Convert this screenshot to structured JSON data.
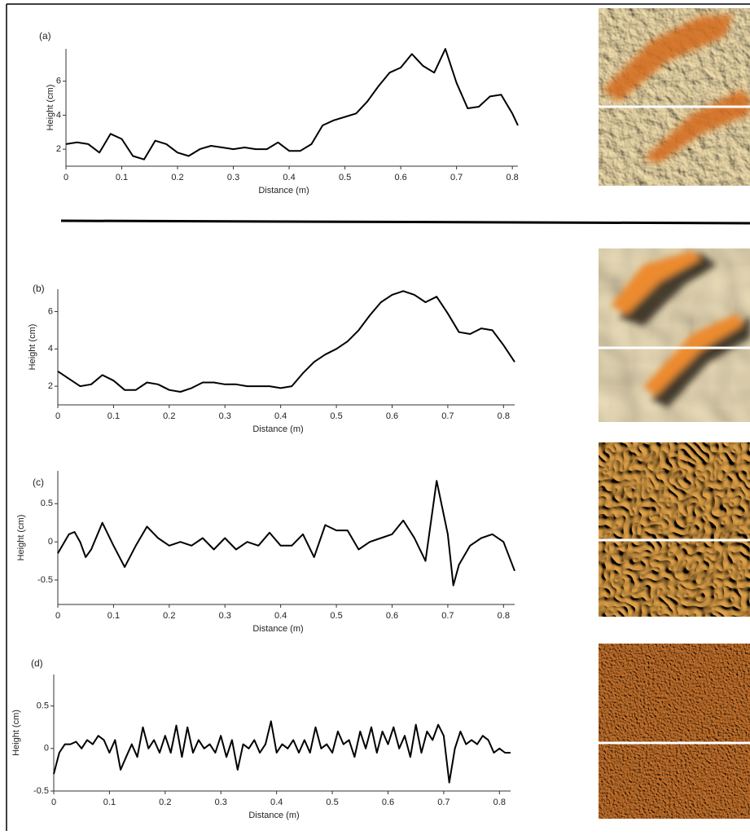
{
  "chart_data": [
    {
      "type": "line",
      "panel_label": "(a)",
      "x_label": "Distance (m)",
      "y_label": "Height (cm)",
      "color": "#000000",
      "x": [
        0,
        0.02,
        0.04,
        0.06,
        0.08,
        0.1,
        0.12,
        0.14,
        0.16,
        0.18,
        0.2,
        0.22,
        0.24,
        0.26,
        0.28,
        0.3,
        0.32,
        0.34,
        0.36,
        0.38,
        0.4,
        0.42,
        0.44,
        0.46,
        0.48,
        0.5,
        0.52,
        0.54,
        0.56,
        0.58,
        0.6,
        0.62,
        0.64,
        0.66,
        0.68,
        0.7,
        0.72,
        0.74,
        0.76,
        0.78,
        0.8,
        0.81
      ],
      "values": [
        2.3,
        2.4,
        2.3,
        1.8,
        2.9,
        2.6,
        1.6,
        1.4,
        2.5,
        2.3,
        1.8,
        1.6,
        2.0,
        2.2,
        2.1,
        2.0,
        2.1,
        2.0,
        2.0,
        2.4,
        1.9,
        1.9,
        2.3,
        3.4,
        3.7,
        3.9,
        4.1,
        4.8,
        5.7,
        6.5,
        6.8,
        7.6,
        6.9,
        6.5,
        7.9,
        5.9,
        4.4,
        4.5,
        5.1,
        5.2,
        4.1,
        3.4
      ],
      "xlim": [
        0,
        0.81
      ],
      "xticks": [
        0,
        0.1,
        0.2,
        0.3,
        0.4,
        0.5,
        0.6,
        0.7,
        0.8
      ],
      "ylim": [
        1,
        7.9
      ],
      "yticks": [
        2,
        4,
        6
      ]
    },
    {
      "type": "line",
      "panel_label": "(b)",
      "x_label": "Distance (m)",
      "y_label": "Height (cm)",
      "color": "#000000",
      "x": [
        0,
        0.02,
        0.04,
        0.06,
        0.08,
        0.1,
        0.12,
        0.14,
        0.16,
        0.18,
        0.2,
        0.22,
        0.24,
        0.26,
        0.28,
        0.3,
        0.32,
        0.34,
        0.36,
        0.38,
        0.4,
        0.42,
        0.44,
        0.46,
        0.48,
        0.5,
        0.52,
        0.54,
        0.56,
        0.58,
        0.6,
        0.62,
        0.64,
        0.66,
        0.68,
        0.7,
        0.72,
        0.74,
        0.76,
        0.78,
        0.8,
        0.82
      ],
      "values": [
        2.8,
        2.4,
        2.0,
        2.1,
        2.6,
        2.3,
        1.8,
        1.8,
        2.2,
        2.1,
        1.8,
        1.7,
        1.9,
        2.2,
        2.2,
        2.1,
        2.1,
        2.0,
        2.0,
        2.0,
        1.9,
        2.0,
        2.7,
        3.3,
        3.7,
        4.0,
        4.4,
        5.0,
        5.8,
        6.5,
        6.9,
        7.1,
        6.9,
        6.5,
        6.8,
        5.9,
        4.9,
        4.8,
        5.1,
        5.0,
        4.2,
        3.3
      ],
      "xlim": [
        0,
        0.82
      ],
      "xticks": [
        0,
        0.1,
        0.2,
        0.3,
        0.4,
        0.5,
        0.6,
        0.7,
        0.8
      ],
      "ylim": [
        1,
        7.2
      ],
      "yticks": [
        2,
        4,
        6
      ]
    },
    {
      "type": "line",
      "panel_label": "(c)",
      "x_label": "Distance (m)",
      "y_label": "Height (cm)",
      "color": "#000000",
      "x": [
        0,
        0.02,
        0.03,
        0.04,
        0.05,
        0.06,
        0.08,
        0.1,
        0.12,
        0.14,
        0.16,
        0.18,
        0.2,
        0.22,
        0.24,
        0.26,
        0.28,
        0.3,
        0.32,
        0.34,
        0.36,
        0.38,
        0.4,
        0.42,
        0.44,
        0.46,
        0.48,
        0.5,
        0.52,
        0.54,
        0.56,
        0.58,
        0.6,
        0.62,
        0.64,
        0.66,
        0.68,
        0.7,
        0.71,
        0.72,
        0.74,
        0.76,
        0.78,
        0.8,
        0.82
      ],
      "values": [
        -0.15,
        0.1,
        0.13,
        0,
        -0.2,
        -0.1,
        0.25,
        -0.05,
        -0.33,
        -0.05,
        0.2,
        0.05,
        -0.05,
        0,
        -0.05,
        0.05,
        -0.1,
        0.05,
        -0.1,
        0,
        -0.05,
        0.12,
        -0.05,
        -0.05,
        0.1,
        -0.2,
        0.22,
        0.15,
        0.15,
        -0.1,
        0,
        0.05,
        0.1,
        0.28,
        0.05,
        -0.25,
        0.8,
        0.1,
        -0.57,
        -0.3,
        -0.05,
        0.05,
        0.1,
        0,
        -0.38
      ],
      "xlim": [
        0,
        0.82
      ],
      "xticks": [
        0,
        0.1,
        0.2,
        0.3,
        0.4,
        0.5,
        0.6,
        0.7,
        0.8
      ],
      "ylim": [
        -0.82,
        0.93
      ],
      "yticks": [
        -0.5,
        0,
        0.5
      ]
    },
    {
      "type": "line",
      "panel_label": "(d)",
      "x_label": "Distance (m)",
      "y_label": "Height (cm)",
      "color": "#000000",
      "x": [
        0,
        0.01,
        0.02,
        0.03,
        0.04,
        0.05,
        0.06,
        0.07,
        0.08,
        0.09,
        0.1,
        0.11,
        0.12,
        0.13,
        0.14,
        0.15,
        0.16,
        0.17,
        0.18,
        0.19,
        0.2,
        0.21,
        0.22,
        0.23,
        0.24,
        0.25,
        0.26,
        0.27,
        0.28,
        0.29,
        0.3,
        0.31,
        0.32,
        0.33,
        0.34,
        0.35,
        0.36,
        0.37,
        0.38,
        0.39,
        0.4,
        0.41,
        0.42,
        0.43,
        0.44,
        0.45,
        0.46,
        0.47,
        0.48,
        0.49,
        0.5,
        0.51,
        0.52,
        0.53,
        0.54,
        0.55,
        0.56,
        0.57,
        0.58,
        0.59,
        0.6,
        0.61,
        0.62,
        0.63,
        0.64,
        0.65,
        0.66,
        0.67,
        0.68,
        0.69,
        0.7,
        0.71,
        0.72,
        0.73,
        0.74,
        0.75,
        0.76,
        0.77,
        0.78,
        0.79,
        0.8,
        0.81,
        0.82
      ],
      "values": [
        -0.3,
        -0.05,
        0.05,
        0.05,
        0.08,
        0,
        0.1,
        0.05,
        0.15,
        0.1,
        -0.05,
        0.1,
        -0.25,
        -0.1,
        0.05,
        -0.1,
        0.25,
        0,
        0.1,
        -0.05,
        0.15,
        -0.05,
        0.27,
        -0.1,
        0.25,
        -0.05,
        0.1,
        0,
        0.05,
        -0.05,
        0.15,
        -0.1,
        0.1,
        -0.25,
        0.05,
        0,
        0.1,
        -0.05,
        0.05,
        0.32,
        -0.05,
        0.05,
        0,
        0.1,
        -0.05,
        0.1,
        -0.05,
        0.25,
        0,
        0.05,
        -0.05,
        0.2,
        0.05,
        0.1,
        -0.1,
        0.2,
        0,
        0.25,
        -0.05,
        0.2,
        0.05,
        0.25,
        0,
        0.15,
        -0.1,
        0.28,
        -0.05,
        0.2,
        0.1,
        0.28,
        0.15,
        -0.4,
        0,
        0.2,
        0.05,
        0.1,
        0.05,
        0.15,
        0.1,
        -0.05,
        0,
        -0.05,
        -0.05
      ],
      "xlim": [
        0,
        0.82
      ],
      "xticks": [
        0,
        0.1,
        0.2,
        0.3,
        0.4,
        0.5,
        0.6,
        0.7,
        0.8
      ],
      "ylim": [
        -0.5,
        0.87
      ],
      "yticks": [
        -0.5,
        0,
        0.5
      ]
    }
  ]
}
